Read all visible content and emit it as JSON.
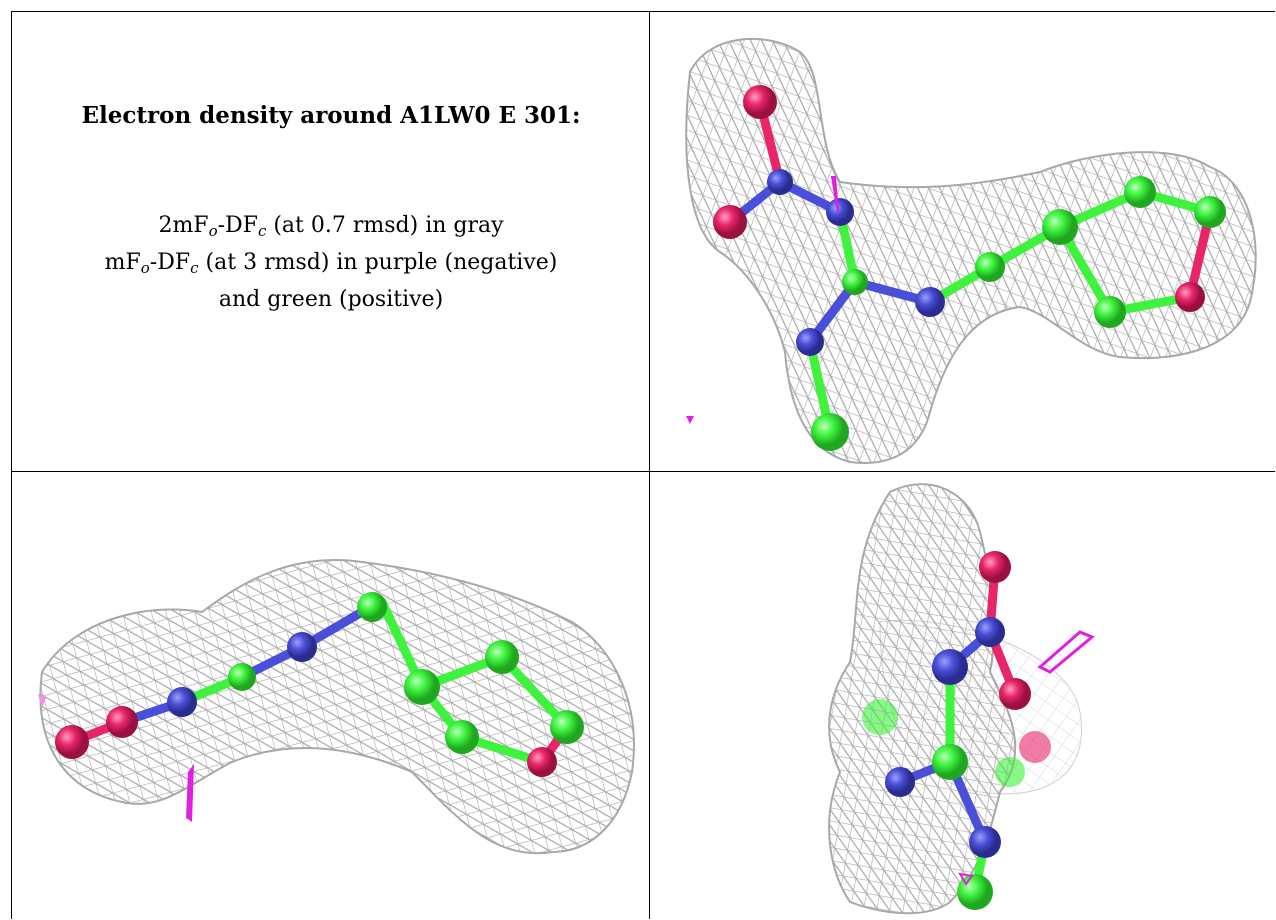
{
  "title": "Electron density around A1LW0 E 301:",
  "legend": {
    "line1": {
      "prefix": "2mF",
      "sub1": "o",
      "mid": "-DF",
      "sub2": "c",
      "suffix": " (at 0.7 rmsd) in gray"
    },
    "line2": {
      "prefix": "mF",
      "sub1": "o",
      "mid": "-DF",
      "sub2": "c",
      "suffix": " (at 3 rmsd) in purple (negative)"
    },
    "line3": "and green (positive)"
  },
  "colors": {
    "mesh": "#a8a8a8",
    "carbon": "#3ef23e",
    "nitrogen": "#4a4ed8",
    "oxygen": "#e8256a",
    "negative_density": "#e020e0"
  },
  "views": [
    "top-right view",
    "bottom-left view",
    "bottom-right view"
  ]
}
